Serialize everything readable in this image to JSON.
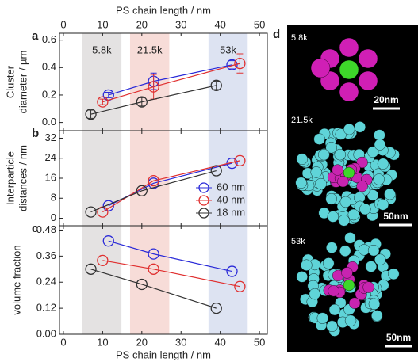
{
  "chart_data": [
    {
      "type": "line",
      "panel": "a",
      "ylabel": [
        "Cluster",
        "diameter / µm"
      ],
      "xlabel": "PS chain length / nm",
      "xaxis": "top",
      "xlim": [
        -1,
        52
      ],
      "xticks": [
        0,
        10,
        20,
        30,
        40,
        50
      ],
      "ylim": [
        -0.06,
        0.65
      ],
      "yticks": [
        {
          "value": 0,
          "label": "0.0"
        },
        0.2,
        0.4,
        0.6
      ],
      "bands": [
        {
          "label": "5.8k",
          "range": [
            4.8,
            14.8
          ],
          "color": "#e4e2e2"
        },
        {
          "label": "21.5k",
          "range": [
            17,
            27
          ],
          "color": "#f7dcd8"
        },
        {
          "label": "53k",
          "range": [
            37,
            47
          ],
          "color": "#dde3f2"
        }
      ],
      "series": [
        {
          "name": "60 nm",
          "color": "#2a2ad8",
          "x": [
            11.5,
            23,
            43
          ],
          "values": [
            0.2,
            0.3,
            0.42
          ],
          "errors": [
            0.02,
            0.06,
            0.03
          ]
        },
        {
          "name": "40 nm",
          "color": "#e03030",
          "x": [
            10,
            23,
            45
          ],
          "values": [
            0.15,
            0.26,
            0.43
          ],
          "errors": [
            0.02,
            0.09,
            0.07
          ]
        },
        {
          "name": "18 nm",
          "color": "#333333",
          "x": [
            7,
            20,
            39
          ],
          "values": [
            0.06,
            0.15,
            0.27
          ],
          "errors": [
            0.03,
            0.03,
            0.03
          ]
        }
      ]
    },
    {
      "type": "line",
      "panel": "b",
      "ylabel": [
        "Interparticle",
        "distances / nm"
      ],
      "xaxis": "none",
      "xlim": [
        -1,
        52
      ],
      "xticks": [
        0,
        10,
        20,
        30,
        40,
        50
      ],
      "ylim": [
        -3,
        35
      ],
      "yticks": [
        0,
        8,
        16,
        24,
        32
      ],
      "legend": "lower right",
      "series": [
        {
          "name": "60 nm",
          "color": "#2a2ad8",
          "x": [
            11.5,
            23,
            43
          ],
          "values": [
            5,
            14,
            22
          ]
        },
        {
          "name": "40 nm",
          "color": "#e03030",
          "x": [
            10,
            23,
            45
          ],
          "values": [
            2.5,
            15,
            23
          ]
        },
        {
          "name": "18 nm",
          "color": "#333333",
          "x": [
            7,
            20,
            39
          ],
          "values": [
            2.5,
            11,
            19
          ]
        }
      ]
    },
    {
      "type": "line",
      "panel": "c",
      "ylabel": [
        "volume fraction"
      ],
      "xlabel": "PS chain length / nm",
      "xaxis": "bottom",
      "xlim": [
        -1,
        52
      ],
      "xticks": [
        0,
        10,
        20,
        30,
        40,
        50
      ],
      "ylim": [
        0,
        0.5
      ],
      "yticks": [
        {
          "value": 0,
          "label": "0.00"
        },
        0.12,
        0.24,
        0.36,
        0.48
      ],
      "series": [
        {
          "name": "60 nm",
          "color": "#2a2ad8",
          "x": [
            11.5,
            23,
            43
          ],
          "values": [
            0.43,
            0.37,
            0.29
          ]
        },
        {
          "name": "40 nm",
          "color": "#e03030",
          "x": [
            10,
            23,
            45
          ],
          "values": [
            0.34,
            0.3,
            0.22
          ]
        },
        {
          "name": "18 nm",
          "color": "#333333",
          "x": [
            7,
            20,
            39
          ],
          "values": [
            0.3,
            0.23,
            0.12
          ]
        }
      ]
    }
  ],
  "panel_d": {
    "label": "d",
    "images": [
      {
        "label": "5.8k",
        "scale_bar": "20nm"
      },
      {
        "label": "21.5k",
        "scale_bar": "50nm"
      },
      {
        "label": "53k",
        "scale_bar": "50nm"
      }
    ]
  }
}
